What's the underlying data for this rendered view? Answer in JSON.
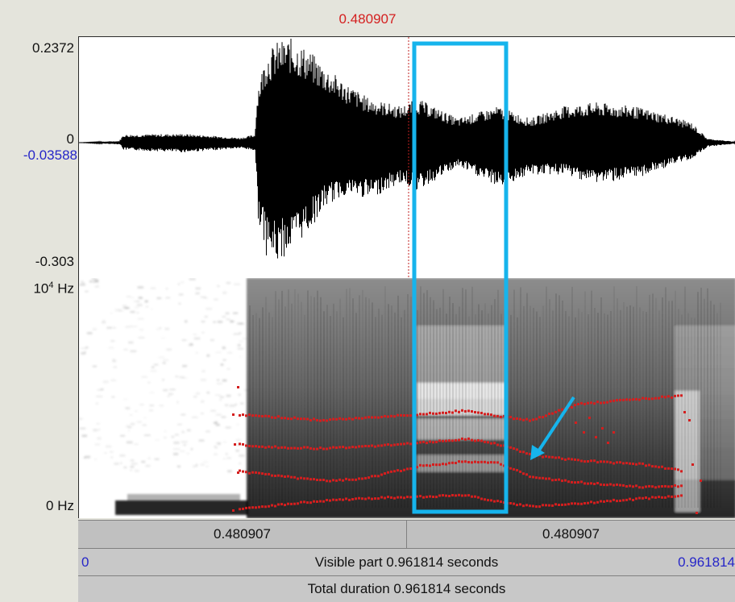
{
  "cursor_time": "0.480907",
  "waveform": {
    "y_max": "0.2372",
    "y_zero": "0",
    "y_cursor": "-0.03588",
    "y_min": "-0.303"
  },
  "spectrogram": {
    "y_max_base": "10",
    "y_max_exp": "4",
    "y_max_unit": " Hz",
    "y_min": "0 Hz"
  },
  "selection_bar": {
    "left": "0.480907",
    "right": "0.480907"
  },
  "visible_bar": {
    "start": "0",
    "label": "Visible part 0.961814 seconds",
    "end": "0.961814"
  },
  "total_bar": {
    "label": "Total duration 0.961814 seconds"
  },
  "colors": {
    "cursor_red": "#d42020",
    "axis_blue": "#2626c8",
    "highlight_cyan": "#16b4ec",
    "formant_red": "#d41e1e"
  }
}
